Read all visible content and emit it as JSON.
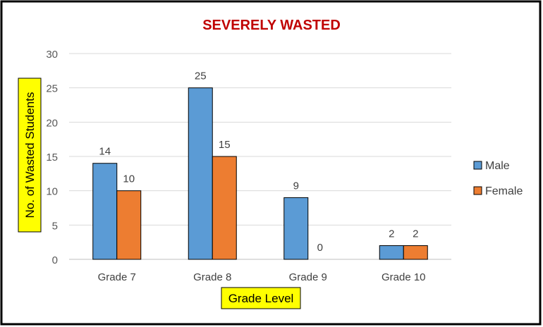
{
  "chart_data": {
    "type": "bar",
    "title": "SEVERELY WASTED",
    "xlabel": "Grade Level",
    "ylabel": "No. of Wasted Students",
    "categories": [
      "Grade 7",
      "Grade 8",
      "Grade 9",
      "Grade 10"
    ],
    "series": [
      {
        "name": "Male",
        "values": [
          14,
          25,
          9,
          2
        ],
        "color": "#5B9BD5"
      },
      {
        "name": "Female",
        "values": [
          10,
          15,
          0,
          2
        ],
        "color": "#ED7D31"
      }
    ],
    "ylim": [
      0,
      30
    ],
    "yticks": [
      0,
      5,
      10,
      15,
      20,
      25,
      30
    ],
    "grid": true,
    "legend_position": "right",
    "colors": {
      "title": "#C00000",
      "label_highlight": "#FFFF00",
      "gridline": "#D9D9D9",
      "frame": "#000000"
    }
  }
}
